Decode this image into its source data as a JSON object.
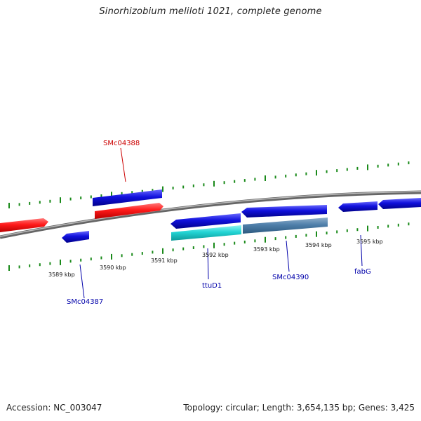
{
  "title": "Sinorhizobium meliloti 1021, complete genome",
  "accession_text": "Accession: NC_003047",
  "summary_text": "Topology: circular; Length: 3,654,135 bp; Genes: 3,425",
  "colors": {
    "forward_gene": "#ff1a1a",
    "reverse_gene": "#1111dd",
    "highlight_gene": "#22d4d4",
    "steel_gene": "#4f7faa",
    "tick": "#1a8a1a",
    "backbone": "#888888",
    "label_forward": "#cc0000",
    "label_reverse": "#0000aa"
  },
  "scale_labels": [
    "3589 kbp",
    "3590 kbp",
    "3591 kbp",
    "3592 kbp",
    "3593 kbp",
    "3594 kbp",
    "3595 kbp"
  ],
  "gene_labels": [
    {
      "name": "SMc04388",
      "strand": "forward"
    },
    {
      "name": "SMc04387",
      "strand": "reverse"
    },
    {
      "name": "ttuD1",
      "strand": "reverse"
    },
    {
      "name": "SMc04390",
      "strand": "reverse"
    },
    {
      "name": "fabG",
      "strand": "reverse"
    }
  ]
}
